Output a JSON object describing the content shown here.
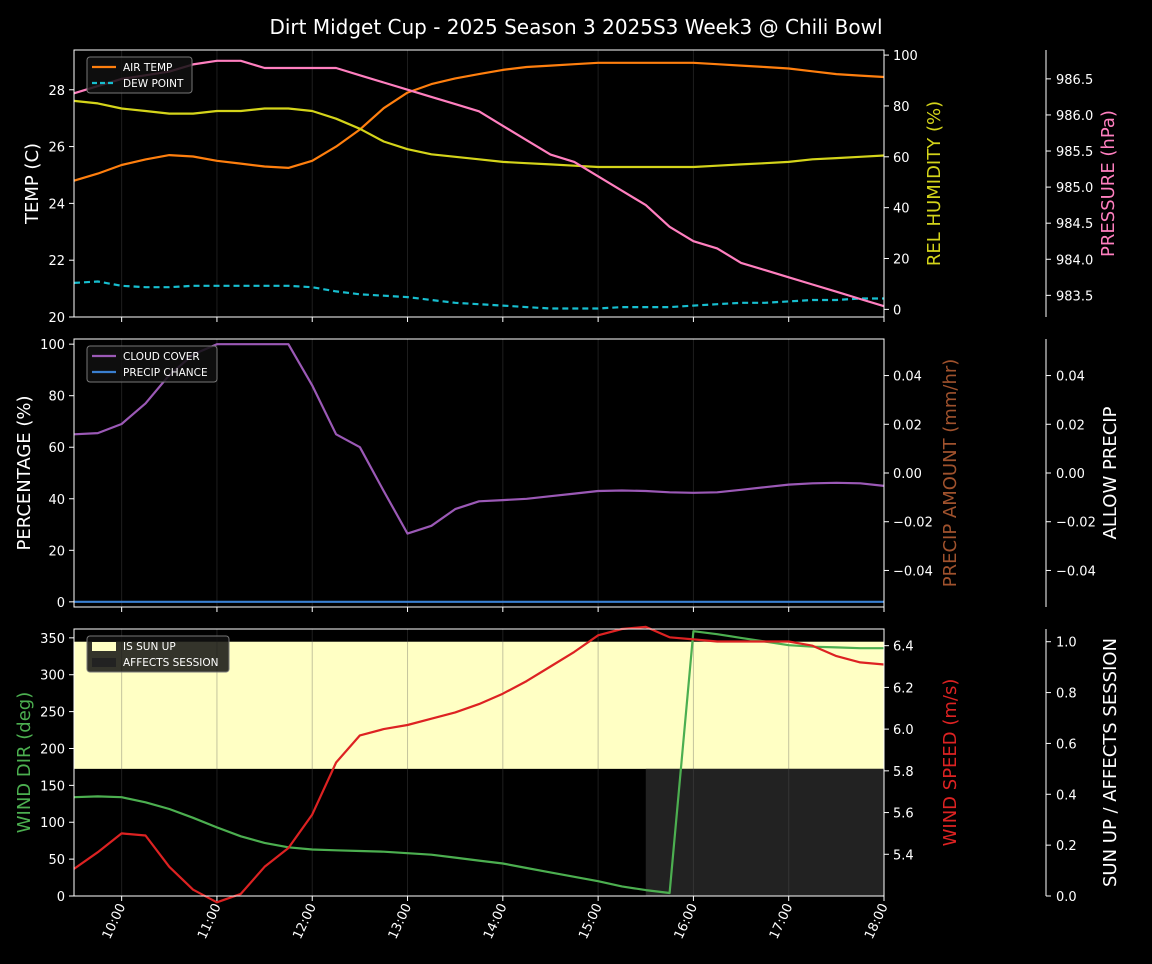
{
  "title": "Dirt Midget Cup - 2025 Season 3 2025S3 Week3 @ Chili Bowl",
  "x_ticks": [
    "10:00",
    "11:00",
    "12:00",
    "13:00",
    "14:00",
    "15:00",
    "16:00",
    "17:00",
    "18:00"
  ],
  "colors": {
    "air_temp": "#ff7f0e",
    "dew_point": "#17becf",
    "humidity": "#d4d41a",
    "pressure": "#ff7fbf",
    "cloud": "#9b59b6",
    "precip_chance": "#3a7fd0",
    "precip_amount": "#a0522d",
    "wind_dir": "#4caf50",
    "wind_speed": "#dd2222",
    "sun_up": "#ffffc4",
    "affects": "#222222"
  },
  "chart_data": [
    {
      "type": "line",
      "panel": "temperature",
      "x_hours": [
        9.5,
        9.75,
        10,
        10.25,
        10.5,
        10.75,
        11,
        11.25,
        11.5,
        11.75,
        12,
        12.25,
        12.5,
        12.75,
        13,
        13.25,
        13.5,
        13.75,
        14,
        14.25,
        14.5,
        14.75,
        15,
        15.25,
        15.5,
        15.75,
        16,
        16.25,
        16.5,
        16.75,
        17,
        17.25,
        17.5,
        17.75,
        18
      ],
      "y_label": "TEMP (C)",
      "y_ticks": [
        "20",
        "22",
        "24",
        "26",
        "28"
      ],
      "y_range": [
        20,
        29.4
      ],
      "y2_label": "REL HUMIDITY (%)",
      "y2_ticks": [
        "0",
        "20",
        "40",
        "60",
        "80",
        "100"
      ],
      "y2_range": [
        -3,
        102
      ],
      "y3_label": "PRESSURE (hPa)",
      "y3_ticks": [
        "983.5",
        "984.0",
        "984.5",
        "985.0",
        "985.5",
        "986.0",
        "986.5"
      ],
      "y3_range": [
        983.2,
        986.9
      ],
      "legend": [
        "AIR TEMP",
        "DEW POINT"
      ],
      "series": [
        {
          "name": "AIR TEMP",
          "axis": "y",
          "values": [
            24.8,
            25.05,
            25.35,
            25.55,
            25.7,
            25.65,
            25.5,
            25.4,
            25.3,
            25.25,
            25.5,
            26.0,
            26.6,
            27.35,
            27.9,
            28.2,
            28.4,
            28.55,
            28.7,
            28.8,
            28.85,
            28.9,
            28.95,
            28.95,
            28.95,
            28.95,
            28.95,
            28.9,
            28.85,
            28.8,
            28.75,
            28.65,
            28.55,
            28.5,
            28.45
          ]
        },
        {
          "name": "DEW POINT",
          "axis": "y",
          "values": [
            21.2,
            21.25,
            21.1,
            21.05,
            21.05,
            21.1,
            21.1,
            21.1,
            21.1,
            21.1,
            21.05,
            20.9,
            20.8,
            20.75,
            20.7,
            20.6,
            20.5,
            20.45,
            20.4,
            20.35,
            20.3,
            20.3,
            20.3,
            20.35,
            20.35,
            20.35,
            20.4,
            20.45,
            20.5,
            20.5,
            20.55,
            20.6,
            20.6,
            20.65,
            20.65
          ]
        },
        {
          "name": "REL HUMIDITY",
          "axis": "y2",
          "values": [
            82,
            81,
            79,
            78,
            77,
            77,
            78,
            78,
            79,
            79,
            78,
            75,
            71,
            66,
            63,
            61,
            60,
            59,
            58,
            57.5,
            57,
            56.5,
            56,
            56,
            56,
            56,
            56,
            56.5,
            57,
            57.5,
            58,
            59,
            59.5,
            60,
            60.5
          ]
        },
        {
          "name": "PRESSURE",
          "axis": "y3",
          "values": [
            986.3,
            986.4,
            986.5,
            986.55,
            986.6,
            986.7,
            986.75,
            986.75,
            986.65,
            986.65,
            986.65,
            986.65,
            986.55,
            986.45,
            986.35,
            986.25,
            986.15,
            986.05,
            985.85,
            985.65,
            985.45,
            985.35,
            985.15,
            984.95,
            984.75,
            984.45,
            984.25,
            984.15,
            983.95,
            983.85,
            983.75,
            983.65,
            983.55,
            983.45,
            983.35
          ]
        }
      ]
    },
    {
      "type": "line",
      "panel": "precipitation",
      "x_hours": [
        9.5,
        9.75,
        10,
        10.25,
        10.5,
        10.75,
        11,
        11.25,
        11.5,
        11.75,
        12,
        12.25,
        12.5,
        12.75,
        13,
        13.25,
        13.5,
        13.75,
        14,
        14.25,
        14.5,
        14.75,
        15,
        15.25,
        15.5,
        15.75,
        16,
        16.25,
        16.5,
        16.75,
        17,
        17.25,
        17.5,
        17.75,
        18
      ],
      "y_label": "PERCENTAGE (%)",
      "y_ticks": [
        "0",
        "20",
        "40",
        "60",
        "80",
        "100"
      ],
      "y_range": [
        -2,
        102
      ],
      "y2_label": "PRECIP AMOUNT (mm/hr)",
      "y2_ticks": [
        "−0.04",
        "−0.02",
        "0.00",
        "0.02",
        "0.04"
      ],
      "y2_range": [
        -0.055,
        0.055
      ],
      "y3_label": "ALLOW PRECIP",
      "y3_ticks": [
        "−0.04",
        "−0.02",
        "0.00",
        "0.02",
        "0.04"
      ],
      "y3_range": [
        -0.055,
        0.055
      ],
      "legend": [
        "CLOUD COVER",
        "PRECIP CHANCE"
      ],
      "series": [
        {
          "name": "CLOUD COVER",
          "axis": "y",
          "values": [
            65,
            65.5,
            69,
            77,
            88,
            96,
            100,
            100,
            100,
            100,
            84,
            65,
            60,
            43,
            26.5,
            29.5,
            36,
            39,
            39.5,
            40,
            41,
            42,
            43,
            43.2,
            43,
            42.5,
            42.3,
            42.5,
            43.5,
            44.5,
            45.5,
            46,
            46.2,
            46,
            45
          ]
        },
        {
          "name": "PRECIP CHANCE",
          "axis": "y",
          "values": [
            0,
            0,
            0,
            0,
            0,
            0,
            0,
            0,
            0,
            0,
            0,
            0,
            0,
            0,
            0,
            0,
            0,
            0,
            0,
            0,
            0,
            0,
            0,
            0,
            0,
            0,
            0,
            0,
            0,
            0,
            0,
            0,
            0,
            0,
            0
          ]
        }
      ]
    },
    {
      "type": "line",
      "panel": "wind",
      "x_hours": [
        9.5,
        9.75,
        10,
        10.25,
        10.5,
        10.75,
        11,
        11.25,
        11.5,
        11.75,
        12,
        12.25,
        12.5,
        12.75,
        13,
        13.25,
        13.5,
        13.75,
        14,
        14.25,
        14.5,
        14.75,
        15,
        15.25,
        15.5,
        15.75,
        16,
        16.25,
        16.5,
        16.75,
        17,
        17.25,
        17.5,
        17.75,
        18
      ],
      "y_label": "WIND DIR (deg)",
      "y_ticks": [
        "0",
        "50",
        "100",
        "150",
        "200",
        "250",
        "300",
        "350"
      ],
      "y_range": [
        0,
        362
      ],
      "y2_label": "WIND SPEED (m/s)",
      "y2_ticks": [
        "5.4",
        "5.6",
        "5.8",
        "6.0",
        "6.2",
        "6.4"
      ],
      "y2_range": [
        5.2,
        6.48
      ],
      "y3_label": "SUN UP / AFFECTS SESSION",
      "y3_ticks": [
        "0.0",
        "0.2",
        "0.4",
        "0.6",
        "0.8",
        "1.0"
      ],
      "y3_range": [
        0,
        1.05
      ],
      "legend": [
        "IS SUN UP",
        "AFFECTS SESSION"
      ],
      "sun_up": {
        "start_hour": 9.5,
        "end_hour": 18,
        "from": 0.5,
        "to": 1.0
      },
      "affects_session": {
        "start_hour": 15.5,
        "end_hour": 18,
        "from": 0,
        "to": 0.5
      },
      "series": [
        {
          "name": "WIND DIR",
          "axis": "y",
          "values": [
            134,
            135,
            134,
            127,
            118,
            106,
            93,
            81,
            72,
            66,
            63,
            62,
            61,
            60,
            58,
            56,
            52,
            48,
            44,
            38,
            32,
            26,
            20,
            13,
            8,
            4,
            359,
            355,
            350,
            345,
            340,
            338,
            337,
            336,
            336
          ]
        },
        {
          "name": "WIND SPEED",
          "axis": "y2",
          "values": [
            5.33,
            5.41,
            5.5,
            5.49,
            5.34,
            5.23,
            5.17,
            5.21,
            5.34,
            5.43,
            5.59,
            5.84,
            5.97,
            6.0,
            6.02,
            6.05,
            6.08,
            6.12,
            6.17,
            6.23,
            6.3,
            6.37,
            6.45,
            6.48,
            6.49,
            6.44,
            6.43,
            6.42,
            6.42,
            6.42,
            6.42,
            6.4,
            6.35,
            6.32,
            6.31
          ]
        }
      ]
    }
  ]
}
